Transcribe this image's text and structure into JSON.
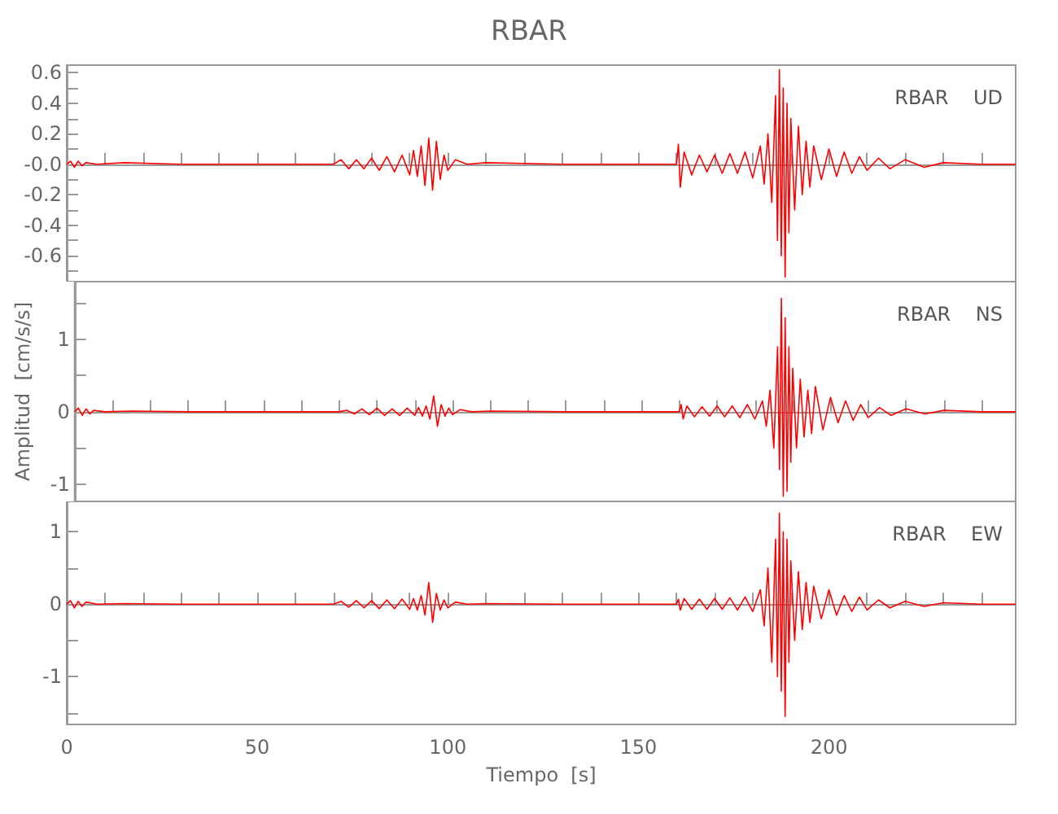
{
  "chart_data": [
    {
      "type": "line",
      "title": "RBAR",
      "annotations": [
        "RBAR    UD"
      ],
      "color": "#ff0000",
      "tick_labels": "y",
      "xlim": [
        0,
        249
      ],
      "xticks": [
        0,
        {
          "value": 10,
          "label": null
        },
        {
          "value": 20,
          "label": null
        },
        {
          "value": 30,
          "label": null
        },
        {
          "value": 40,
          "label": null
        },
        50,
        {
          "value": 60,
          "label": null
        },
        {
          "value": 70,
          "label": null
        },
        {
          "value": 80,
          "label": null
        },
        {
          "value": 90,
          "label": null
        },
        100,
        {
          "value": 110,
          "label": null
        },
        {
          "value": 120,
          "label": null
        },
        {
          "value": 130,
          "label": null
        },
        {
          "value": 140,
          "label": null
        },
        150,
        {
          "value": 160,
          "label": null
        },
        {
          "value": 170,
          "label": null
        },
        {
          "value": 180,
          "label": null
        },
        {
          "value": 190,
          "label": null
        },
        200,
        {
          "value": 210,
          "label": null
        },
        {
          "value": 220,
          "label": null
        },
        {
          "value": 230,
          "label": null
        },
        {
          "value": 240,
          "label": null
        }
      ],
      "ylim": [
        -0.77,
        0.65
      ],
      "yticks": [
        0.6,
        {
          "value": 0.5,
          "label": null
        },
        0.4,
        {
          "value": 0.3,
          "label": null
        },
        0.2,
        {
          "value": 0.1,
          "label": null
        },
        {
          "value": 0,
          "label": "-0.0"
        },
        {
          "value": -0.1,
          "label": null
        },
        -0.2,
        {
          "value": -0.3,
          "label": null
        },
        -0.4,
        {
          "value": -0.5,
          "label": null
        },
        -0.6,
        {
          "value": -0.7,
          "label": null
        }
      ],
      "x": [
        0,
        1,
        2,
        3,
        4,
        5,
        8,
        15,
        30,
        50,
        70,
        72,
        74,
        76,
        78,
        80,
        82,
        84,
        86,
        88,
        90,
        91,
        92,
        93,
        94,
        95,
        96,
        97,
        98,
        99,
        100,
        102,
        105,
        110,
        130,
        150,
        160,
        160.5,
        161,
        162,
        164,
        166,
        168,
        170,
        172,
        174,
        176,
        178,
        180,
        182,
        183,
        184,
        185,
        186,
        186.5,
        187,
        187.5,
        188,
        188.5,
        189,
        189.5,
        190,
        191,
        192,
        193,
        194,
        195,
        196,
        198,
        200,
        202,
        204,
        206,
        208,
        210,
        213,
        216,
        220,
        225,
        230,
        240,
        249
      ],
      "values": [
        0,
        0.02,
        -0.02,
        0.02,
        -0.01,
        0.01,
        0,
        0.01,
        0,
        0,
        0,
        0.03,
        -0.03,
        0.03,
        -0.03,
        0.04,
        -0.04,
        0.05,
        -0.05,
        0.06,
        -0.07,
        0.09,
        -0.08,
        0.12,
        -0.14,
        0.17,
        -0.17,
        0.15,
        -0.1,
        0.06,
        -0.04,
        0.03,
        0,
        0.01,
        0,
        0,
        0,
        0.13,
        -0.15,
        0.08,
        -0.07,
        0.06,
        -0.05,
        0.06,
        -0.06,
        0.07,
        -0.06,
        0.08,
        -0.09,
        0.12,
        -0.13,
        0.2,
        -0.25,
        0.45,
        -0.5,
        0.62,
        -0.6,
        0.5,
        -0.74,
        0.4,
        -0.45,
        0.3,
        -0.3,
        0.25,
        -0.2,
        0.15,
        -0.15,
        0.12,
        -0.1,
        0.1,
        -0.08,
        0.08,
        -0.06,
        0.05,
        -0.04,
        0.04,
        -0.03,
        0.03,
        -0.02,
        0.01,
        0,
        0
      ]
    },
    {
      "type": "line",
      "ylabel": "Amplitud  [cm/s/s]",
      "annotations": [
        "RBAR    NS"
      ],
      "color": "#ff0000",
      "tick_labels": "y",
      "xlim": [
        0,
        249
      ],
      "xticks": [
        0,
        {
          "value": 10,
          "label": null
        },
        {
          "value": 20,
          "label": null
        },
        {
          "value": 30,
          "label": null
        },
        {
          "value": 40,
          "label": null
        },
        50,
        {
          "value": 60,
          "label": null
        },
        {
          "value": 70,
          "label": null
        },
        {
          "value": 80,
          "label": null
        },
        {
          "value": 90,
          "label": null
        },
        100,
        {
          "value": 110,
          "label": null
        },
        {
          "value": 120,
          "label": null
        },
        {
          "value": 130,
          "label": null
        },
        {
          "value": 140,
          "label": null
        },
        150,
        {
          "value": 160,
          "label": null
        },
        {
          "value": 170,
          "label": null
        },
        {
          "value": 180,
          "label": null
        },
        {
          "value": 190,
          "label": null
        },
        200,
        {
          "value": 210,
          "label": null
        },
        {
          "value": 220,
          "label": null
        },
        {
          "value": 230,
          "label": null
        },
        {
          "value": 240,
          "label": null
        }
      ],
      "ylim": [
        -1.24,
        1.8
      ],
      "yticks": [
        {
          "value": 1.5,
          "label": null
        },
        1,
        {
          "value": 0.5,
          "label": null
        },
        0,
        {
          "value": -0.5,
          "label": null
        },
        -1
      ],
      "x": [
        0,
        1,
        2,
        3,
        4,
        5,
        8,
        15,
        30,
        50,
        70,
        72,
        74,
        76,
        78,
        80,
        82,
        84,
        86,
        88,
        90,
        91,
        92,
        93,
        94,
        95,
        96,
        97,
        98,
        99,
        100,
        102,
        105,
        110,
        130,
        150,
        160,
        160.5,
        161,
        162,
        164,
        166,
        168,
        170,
        172,
        174,
        176,
        178,
        180,
        182,
        183,
        184,
        185,
        186,
        186.5,
        187,
        187.5,
        188,
        188.5,
        189,
        189.5,
        190,
        191,
        192,
        193,
        194,
        195,
        196,
        198,
        200,
        202,
        204,
        206,
        208,
        210,
        213,
        216,
        220,
        225,
        230,
        240,
        249
      ],
      "values": [
        0,
        0.05,
        -0.05,
        0.04,
        -0.03,
        0.02,
        0,
        0.01,
        0,
        0,
        0,
        0.02,
        -0.03,
        0.04,
        -0.04,
        0.05,
        -0.05,
        0.04,
        -0.05,
        0.05,
        -0.05,
        0.06,
        -0.06,
        0.08,
        -0.1,
        0.22,
        -0.2,
        0.1,
        -0.06,
        0.05,
        -0.04,
        0.03,
        0,
        0.01,
        0,
        0,
        0,
        0.1,
        -0.1,
        0.08,
        -0.07,
        0.07,
        -0.06,
        0.08,
        -0.07,
        0.08,
        -0.08,
        0.1,
        -0.1,
        0.15,
        -0.2,
        0.3,
        -0.5,
        0.9,
        -0.8,
        1.57,
        -1.17,
        1.3,
        -1.1,
        0.9,
        -0.7,
        0.6,
        -0.5,
        0.45,
        -0.35,
        0.3,
        -0.3,
        0.35,
        -0.25,
        0.2,
        -0.15,
        0.15,
        -0.12,
        0.1,
        -0.08,
        0.06,
        -0.05,
        0.04,
        -0.03,
        0.02,
        0,
        0
      ]
    },
    {
      "type": "line",
      "xlabel": "Tiempo  [s]",
      "annotations": [
        "RBAR    EW"
      ],
      "color": "#ff0000",
      "xlim": [
        0,
        249
      ],
      "xticks": [
        0,
        {
          "value": 10,
          "label": null
        },
        {
          "value": 20,
          "label": null
        },
        {
          "value": 30,
          "label": null
        },
        {
          "value": 40,
          "label": null
        },
        50,
        {
          "value": 60,
          "label": null
        },
        {
          "value": 70,
          "label": null
        },
        {
          "value": 80,
          "label": null
        },
        {
          "value": 90,
          "label": null
        },
        100,
        {
          "value": 110,
          "label": null
        },
        {
          "value": 120,
          "label": null
        },
        {
          "value": 130,
          "label": null
        },
        {
          "value": 140,
          "label": null
        },
        150,
        {
          "value": 160,
          "label": null
        },
        {
          "value": 170,
          "label": null
        },
        {
          "value": 180,
          "label": null
        },
        {
          "value": 190,
          "label": null
        },
        200,
        {
          "value": 210,
          "label": null
        },
        {
          "value": 220,
          "label": null
        },
        {
          "value": 230,
          "label": null
        },
        {
          "value": 240,
          "label": null
        }
      ],
      "ylim": [
        -1.66,
        1.42
      ],
      "yticks": [
        1,
        {
          "value": 0.5,
          "label": null
        },
        0,
        {
          "value": -0.5,
          "label": null
        },
        -1,
        {
          "value": -1.5,
          "label": null
        }
      ],
      "x": [
        0,
        1,
        2,
        3,
        4,
        5,
        8,
        15,
        30,
        50,
        70,
        72,
        74,
        76,
        78,
        80,
        82,
        84,
        86,
        88,
        90,
        91,
        92,
        93,
        94,
        95,
        96,
        97,
        98,
        99,
        100,
        102,
        105,
        110,
        130,
        150,
        160,
        160.5,
        161,
        162,
        164,
        166,
        168,
        170,
        172,
        174,
        176,
        178,
        180,
        182,
        183,
        184,
        185,
        186,
        186.5,
        187,
        187.5,
        188,
        188.5,
        189,
        189.5,
        190,
        191,
        192,
        193,
        194,
        195,
        196,
        198,
        200,
        202,
        204,
        206,
        208,
        210,
        213,
        216,
        220,
        225,
        230,
        240,
        249
      ],
      "values": [
        0,
        0.05,
        -0.05,
        0.04,
        -0.03,
        0.03,
        0,
        0.01,
        0,
        0,
        0,
        0.04,
        -0.04,
        0.05,
        -0.05,
        0.05,
        -0.06,
        0.06,
        -0.06,
        0.07,
        -0.07,
        0.08,
        -0.08,
        0.12,
        -0.15,
        0.3,
        -0.25,
        0.15,
        -0.08,
        0.06,
        -0.05,
        0.03,
        0,
        0.01,
        0,
        0,
        0,
        0.07,
        -0.08,
        0.08,
        -0.07,
        0.07,
        -0.07,
        0.08,
        -0.07,
        0.09,
        -0.08,
        0.1,
        -0.1,
        0.2,
        -0.3,
        0.5,
        -0.8,
        0.9,
        -1.0,
        1.26,
        -1.2,
        1.0,
        -1.55,
        0.9,
        -0.8,
        0.6,
        -0.5,
        0.45,
        -0.35,
        0.3,
        -0.25,
        0.25,
        -0.2,
        0.2,
        -0.15,
        0.12,
        -0.1,
        0.1,
        -0.08,
        0.06,
        -0.05,
        0.04,
        -0.03,
        0.02,
        0,
        0
      ]
    }
  ]
}
